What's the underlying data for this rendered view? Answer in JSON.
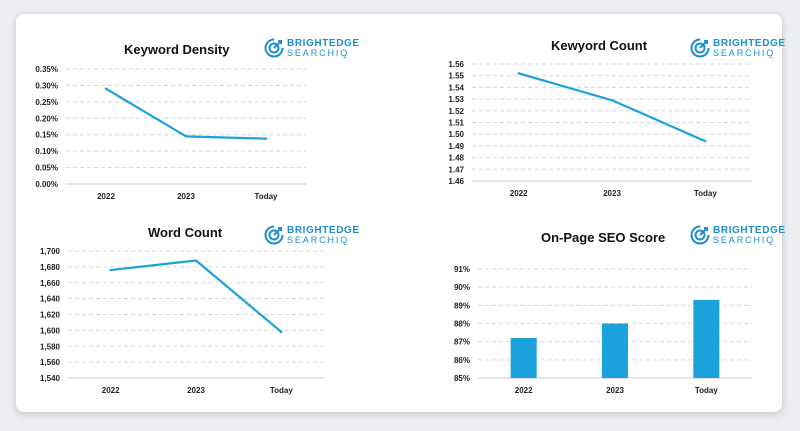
{
  "brand": {
    "name": "BRIGHTEDGE",
    "sub": "SEARCHIQ",
    "color": "#1d8fd1",
    "icon": "brightedge-logo-icon"
  },
  "accent": "#1ba1dc",
  "chart_data": [
    {
      "id": "keyword-density",
      "type": "line",
      "title": "Keyword Density",
      "categories": [
        "2022",
        "2023",
        "Today"
      ],
      "values": [
        0.29,
        0.145,
        0.138
      ],
      "ylim": [
        0,
        0.35
      ],
      "yticks": [
        0,
        0.05,
        0.1,
        0.15,
        0.2,
        0.25,
        0.3,
        0.35
      ],
      "ytick_labels": [
        "0.00%",
        "0.05%",
        "0.10%",
        "0.15%",
        "0.20%",
        "0.25%",
        "0.30%",
        "0.35%"
      ],
      "grid": true
    },
    {
      "id": "keyword-count",
      "type": "line",
      "title": "Kewyord Count",
      "categories": [
        "2022",
        "2023",
        "Today"
      ],
      "values": [
        1.552,
        1.529,
        1.494
      ],
      "ylim": [
        1.46,
        1.56
      ],
      "yticks": [
        1.46,
        1.47,
        1.48,
        1.49,
        1.5,
        1.51,
        1.52,
        1.53,
        1.54,
        1.55,
        1.56
      ],
      "ytick_labels": [
        "1.46",
        "1.47",
        "1.48",
        "1.49",
        "1.50",
        "1.51",
        "1.52",
        "1.53",
        "1.54",
        "1.55",
        "1.56"
      ],
      "grid": true
    },
    {
      "id": "word-count",
      "type": "line",
      "title": "Word Count",
      "categories": [
        "2022",
        "2023",
        "Today"
      ],
      "values": [
        1676,
        1688,
        1598
      ],
      "ylim": [
        1540,
        1700
      ],
      "yticks": [
        1540,
        1560,
        1580,
        1600,
        1620,
        1640,
        1660,
        1680,
        1700
      ],
      "ytick_labels": [
        "1,540",
        "1,560",
        "1,580",
        "1,600",
        "1,620",
        "1,640",
        "1,660",
        "1,680",
        "1,700"
      ],
      "grid": true
    },
    {
      "id": "on-page-seo-score",
      "type": "bar",
      "title": "On-Page SEO Score",
      "categories": [
        "2022",
        "2023",
        "Today"
      ],
      "values": [
        87.2,
        88.0,
        89.3
      ],
      "ylim": [
        85,
        91
      ],
      "yticks": [
        85,
        86,
        87,
        88,
        89,
        90,
        91
      ],
      "ytick_labels": [
        "85%",
        "86%",
        "87%",
        "88%",
        "89%",
        "90%",
        "91%"
      ],
      "grid": true
    }
  ]
}
